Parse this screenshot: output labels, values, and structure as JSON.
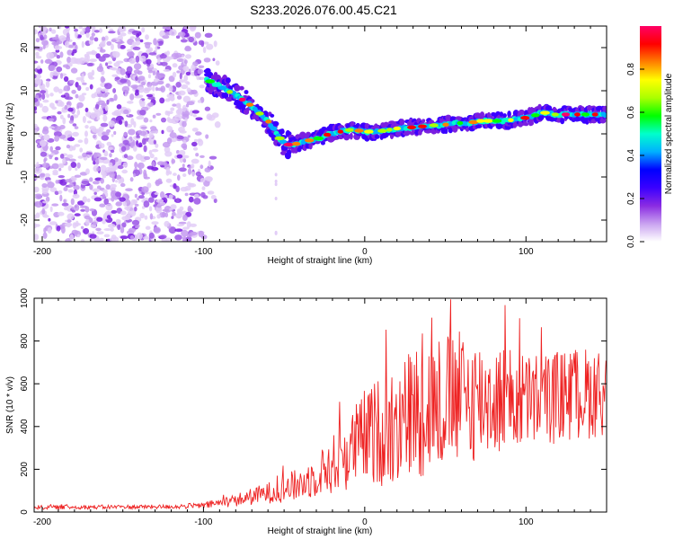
{
  "title": "S233.2026.076.00.45.C21",
  "chart_data": [
    {
      "type": "heatmap",
      "name": "spectrogram",
      "xlabel": "Height of straight line (km)",
      "ylabel": "Frequency (Hz)",
      "xlim": [
        -205,
        150
      ],
      "ylim": [
        -25,
        25
      ],
      "xticks": [
        -200,
        -100,
        0,
        100
      ],
      "yticks": [
        -20,
        -10,
        0,
        10,
        20
      ],
      "noise_region": {
        "x_range": [
          -205,
          -90
        ],
        "freq_range": [
          -25,
          25
        ]
      },
      "ridge": {
        "x": [
          -98,
          -92,
          -85,
          -78,
          -72,
          -66,
          -60,
          -56,
          -52,
          -48,
          -44,
          -40,
          -34,
          -28,
          -22,
          -15,
          -8,
          0,
          8,
          16,
          24,
          32,
          40,
          48,
          56,
          64,
          72,
          80,
          88,
          96,
          104,
          110,
          118,
          126,
          134,
          142,
          150
        ],
        "freq": [
          12.5,
          11.5,
          10,
          8.5,
          7,
          5,
          3,
          1,
          -1.5,
          -2.5,
          -2.5,
          -2,
          -1.5,
          -1,
          0,
          0.5,
          1,
          0.5,
          0.5,
          1,
          1.5,
          1.5,
          2,
          2,
          2.5,
          2.5,
          3,
          3,
          3,
          3.5,
          4,
          5,
          4.5,
          4.5,
          4.5,
          4.5,
          4.5
        ]
      },
      "colorbar": {
        "label": "Normalized spectral amplitude",
        "range": [
          0,
          1
        ],
        "ticks": [
          0.0,
          0.2,
          0.4,
          0.6,
          0.8
        ],
        "tick_labels": [
          "0.0",
          "0.2",
          "0.4",
          "0.6",
          "0.8"
        ],
        "colormap": [
          "#ffffff",
          "#c9a2f0",
          "#8a2be2",
          "#3a00ff",
          "#0000ff",
          "#00b0ff",
          "#00ffcc",
          "#00ff00",
          "#aaff00",
          "#ffff00",
          "#ff8000",
          "#ff0000",
          "#ff0066"
        ]
      }
    },
    {
      "type": "line",
      "name": "snr",
      "xlabel": "Height of straight line (km)",
      "ylabel": "SNR (10 * v/v)",
      "xlim": [
        -205,
        150
      ],
      "ylim": [
        0,
        1000
      ],
      "xticks": [
        -200,
        -100,
        0,
        100
      ],
      "yticks": [
        0,
        200,
        400,
        600,
        800,
        1000
      ],
      "color": "#ee2222",
      "envelope": {
        "x": [
          -205,
          -120,
          -100,
          -80,
          -60,
          -40,
          -30,
          -20,
          -10,
          -5,
          0,
          10,
          20,
          30,
          40,
          50,
          60,
          80,
          100,
          120,
          140,
          150
        ],
        "mean": [
          22,
          25,
          30,
          55,
          90,
          130,
          170,
          220,
          280,
          320,
          350,
          380,
          420,
          470,
          500,
          520,
          530,
          530,
          520,
          540,
          560,
          560
        ],
        "amp": [
          10,
          10,
          15,
          30,
          50,
          80,
          100,
          140,
          180,
          200,
          230,
          260,
          300,
          320,
          330,
          330,
          320,
          270,
          230,
          220,
          220,
          200
        ]
      }
    }
  ]
}
